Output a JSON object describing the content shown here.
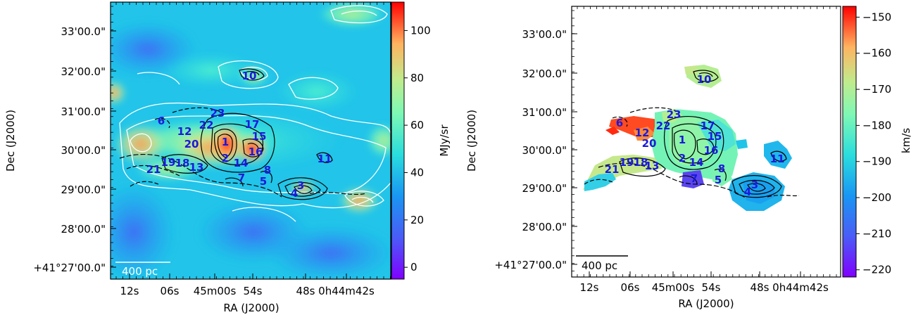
{
  "panels": [
    {
      "id": "left",
      "ra_ticks": [
        "12s",
        "06s",
        "45m00s",
        "54s",
        "48s",
        "0h44m42s"
      ],
      "dec_ticks": [
        "33'00.0\"",
        "32'00.0\"",
        "31'00.0\"",
        "30'00.0\"",
        "29'00.0\"",
        "28'00.0\"",
        "+41°27'00.0\""
      ],
      "xlabel": "RA (J2000)",
      "ylabel": "Dec (J2000)",
      "scalebar": "400 pc",
      "colorbar": {
        "label": "MJy/sr",
        "ticks": [
          "100",
          "80",
          "60",
          "40",
          "20",
          "0"
        ],
        "range": [
          -5,
          112
        ]
      },
      "sources": [
        "1",
        "2",
        "3",
        "4",
        "5",
        "6",
        "7",
        "8",
        "10",
        "11",
        "12",
        "13",
        "14",
        "15",
        "16",
        "17",
        "18",
        "19",
        "20",
        "21",
        "22",
        "23"
      ]
    },
    {
      "id": "right",
      "ra_ticks": [
        "12s",
        "06s",
        "45m00s",
        "54s",
        "48s",
        "0h44m42s"
      ],
      "dec_ticks": [
        "33'00.0\"",
        "32'00.0\"",
        "31'00.0\"",
        "30'00.0\"",
        "29'00.0\"",
        "28'00.0\"",
        "+41°27'00.0\""
      ],
      "xlabel": "RA (J2000)",
      "ylabel": "Dec (J2000)",
      "scalebar": "400 pc",
      "colorbar": {
        "label": "km/s",
        "ticks": [
          "−150",
          "−160",
          "−170",
          "−180",
          "−190",
          "−200",
          "−210",
          "−220"
        ],
        "range": [
          -222,
          -147
        ]
      },
      "sources": [
        "1",
        "2",
        "3",
        "4",
        "5",
        "6",
        "7",
        "8",
        "10",
        "11",
        "12",
        "13",
        "14",
        "15",
        "16",
        "17",
        "18",
        "19",
        "20",
        "21",
        "22",
        "23"
      ]
    }
  ],
  "colormap": "rainbow"
}
